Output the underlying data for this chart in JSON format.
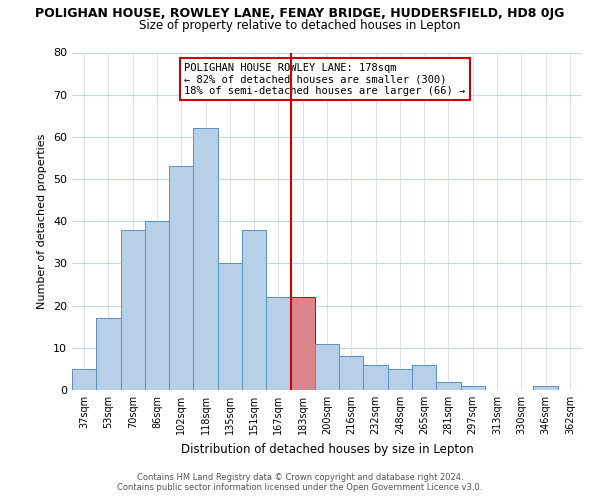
{
  "title": "POLIGHAN HOUSE, ROWLEY LANE, FENAY BRIDGE, HUDDERSFIELD, HD8 0JG",
  "subtitle": "Size of property relative to detached houses in Lepton",
  "xlabel": "Distribution of detached houses by size in Lepton",
  "ylabel": "Number of detached properties",
  "categories": [
    "37sqm",
    "53sqm",
    "70sqm",
    "86sqm",
    "102sqm",
    "118sqm",
    "135sqm",
    "151sqm",
    "167sqm",
    "183sqm",
    "200sqm",
    "216sqm",
    "232sqm",
    "248sqm",
    "265sqm",
    "281sqm",
    "297sqm",
    "313sqm",
    "330sqm",
    "346sqm",
    "362sqm"
  ],
  "values": [
    5,
    17,
    38,
    40,
    53,
    62,
    30,
    38,
    22,
    22,
    11,
    8,
    6,
    5,
    6,
    2,
    1,
    0,
    0,
    1,
    0
  ],
  "bar_color": "#b8cfe8",
  "bar_edge_color": "#5a8fc0",
  "highlight_index": 9,
  "highlight_bar_color": "#d9868a",
  "highlight_bar_edge_color": "#cc0000",
  "highlight_line_color": "#cc0000",
  "annotation_title": "POLIGHAN HOUSE ROWLEY LANE: 178sqm",
  "annotation_line1": "← 82% of detached houses are smaller (300)",
  "annotation_line2": "18% of semi-detached houses are larger (66) →",
  "ylim": [
    0,
    80
  ],
  "yticks": [
    0,
    10,
    20,
    30,
    40,
    50,
    60,
    70,
    80
  ],
  "footer1": "Contains HM Land Registry data © Crown copyright and database right 2024.",
  "footer2": "Contains public sector information licensed under the Open Government Licence v3.0.",
  "background_color": "#ffffff",
  "grid_color": "#c8d8e8"
}
